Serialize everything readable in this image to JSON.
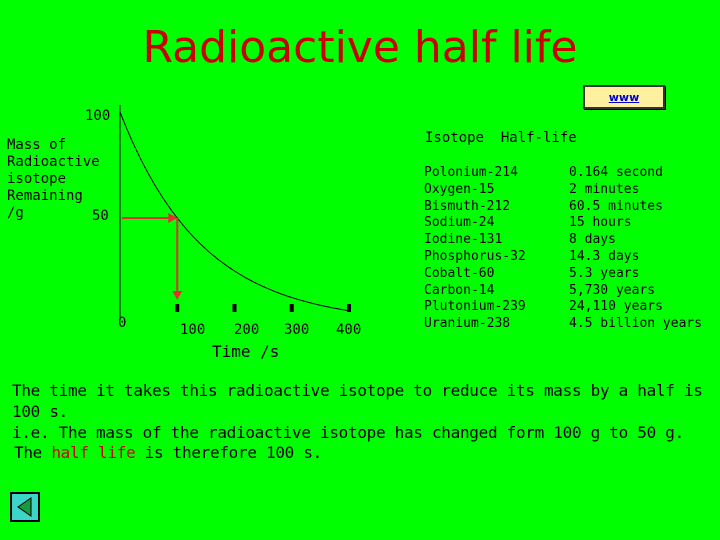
{
  "header": {
    "title": "Radioactive half life"
  },
  "link": {
    "label": "www"
  },
  "chart_data": {
    "type": "line",
    "ylabel": "Mass of Radioactive isotope Remaining /g",
    "xlabel": "Time /s",
    "y_ticks": [
      "100",
      "50"
    ],
    "x_ticks": [
      "0",
      "100",
      "200",
      "300",
      "400"
    ],
    "xlim": [
      0,
      400
    ],
    "ylim": [
      0,
      100
    ],
    "series": [
      {
        "x": [
          0,
          50,
          100,
          150,
          200,
          250,
          300,
          350,
          400
        ],
        "y": [
          100,
          70.7,
          50,
          35.4,
          25,
          17.7,
          12.5,
          8.8,
          6.25
        ]
      }
    ],
    "annotation": {
      "x": 100,
      "y": 50,
      "color": "#e03030"
    }
  },
  "table": {
    "header": "Isotope  Half-life",
    "isotopes": [
      "Polonium-214",
      "Oxygen-15",
      "Bismuth-212",
      "Sodium-24",
      "Iodine-131",
      "Phosphorus-32",
      "Cobalt-60",
      "Carbon-14",
      "Plutonium-239",
      "Uranium-238"
    ],
    "half_lives": [
      "0.164 second",
      "2 minutes",
      "60.5 minutes",
      "15 hours",
      "8 days",
      "14.3 days",
      "5.3 years",
      "5,730 years",
      "24,110 years",
      "4.5 billion years"
    ]
  },
  "explanation": {
    "line1": "The time it takes this radioactive isotope to reduce its mass by a half is 100 s.",
    "line2": "i.e. The mass of the radioactive isotope has changed form 100 g to 50 g.",
    "conclusion_pre": "The ",
    "conclusion_term": "half life",
    "conclusion_post": " is therefore 100 s."
  },
  "nav": {
    "back_icon": "back-arrow-icon"
  }
}
